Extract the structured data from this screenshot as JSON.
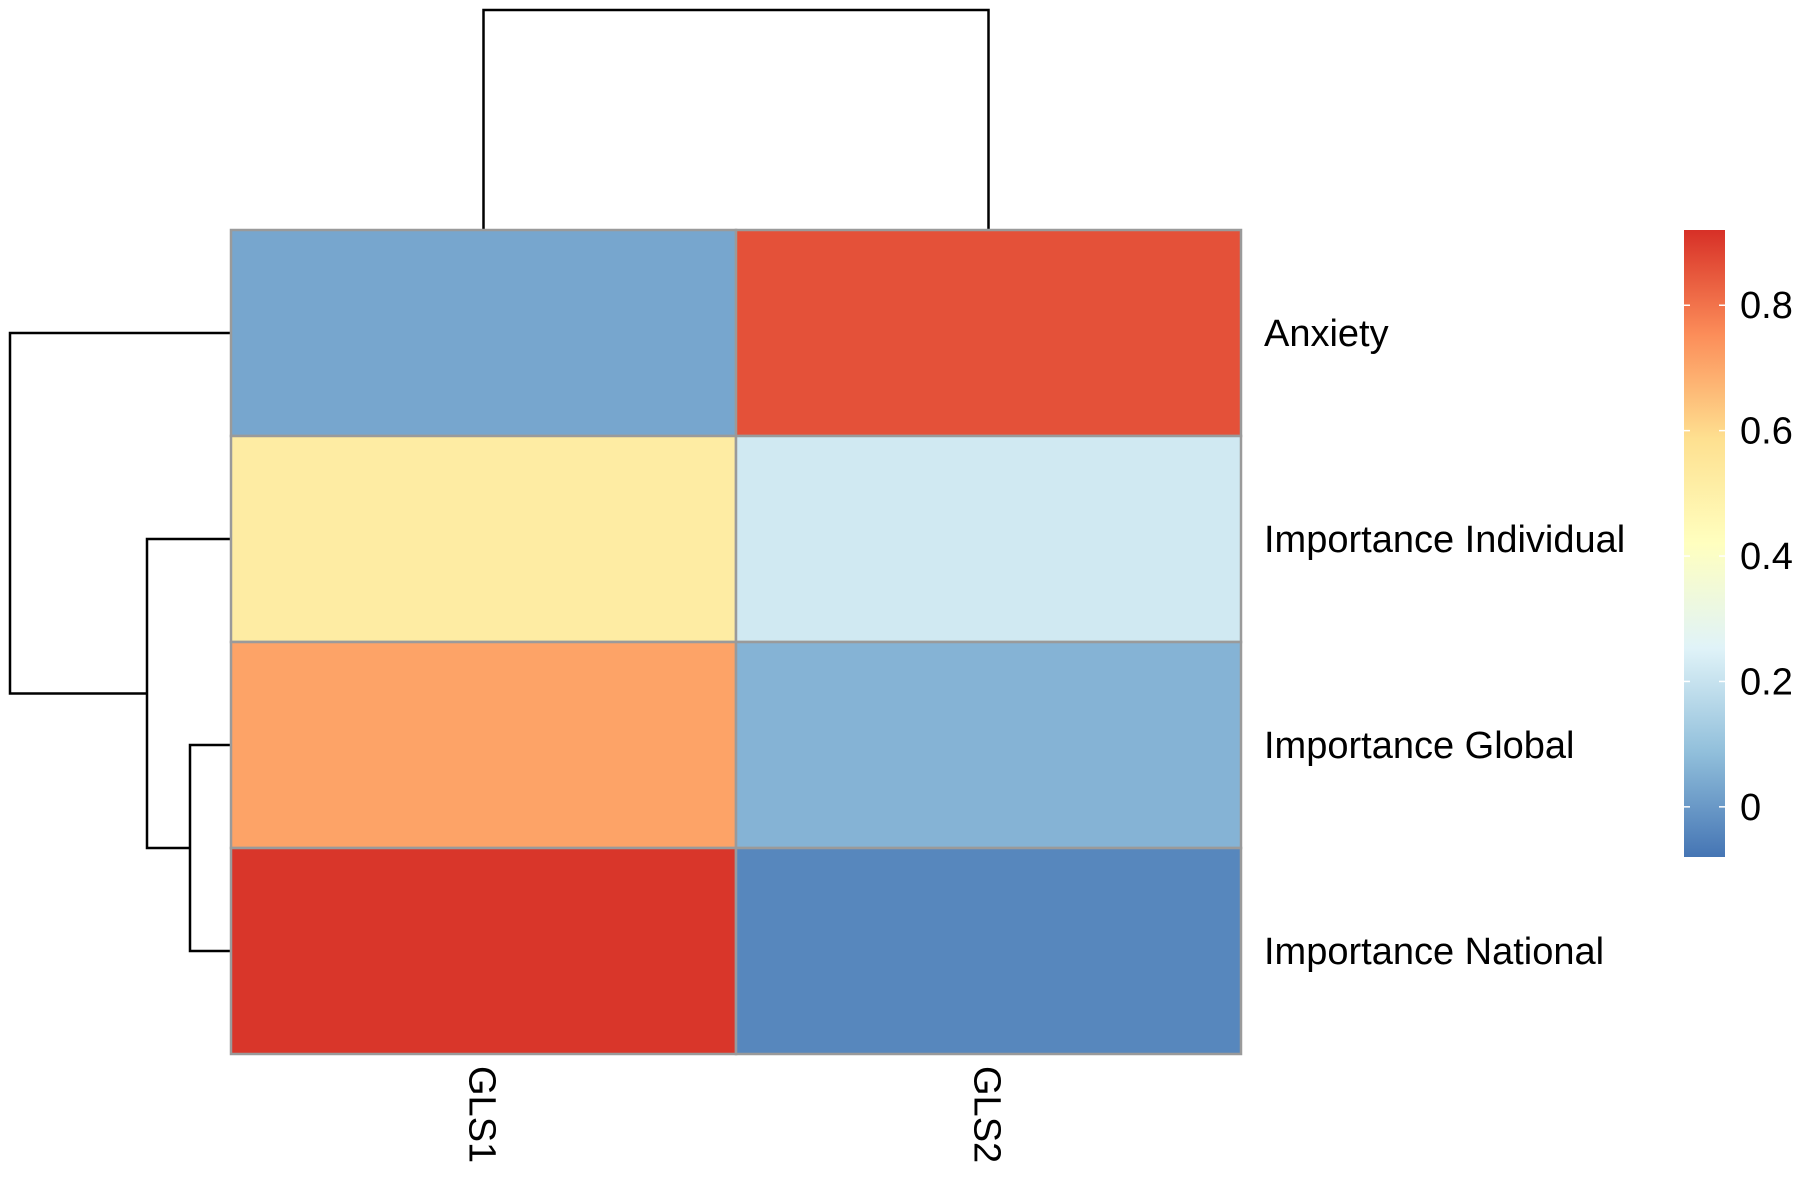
{
  "chart_data": {
    "type": "heatmap",
    "title": "",
    "columns": [
      "GLS1",
      "GLS2"
    ],
    "rows": [
      "Anxiety",
      "Importance Individual",
      "Importance Global",
      "Importance National"
    ],
    "values": [
      [
        0.03,
        0.86
      ],
      [
        0.52,
        0.22
      ],
      [
        0.71,
        0.06
      ],
      [
        0.91,
        -0.04
      ]
    ],
    "color_scale": {
      "min": -0.08,
      "max": 0.92,
      "colors": [
        "#4575B4",
        "#91BFDB",
        "#E0F3F8",
        "#FFFFBF",
        "#FEE090",
        "#FC8D59",
        "#D73027"
      ]
    },
    "legend_ticks": [
      0,
      0.2,
      0.4,
      0.6,
      0.8
    ],
    "legend_tick_labels": [
      "0",
      "0.2",
      "0.4",
      "0.6",
      "0.8"
    ],
    "col_dendrogram": true,
    "row_dendrogram": true,
    "grid": false,
    "legend_position": "right"
  }
}
